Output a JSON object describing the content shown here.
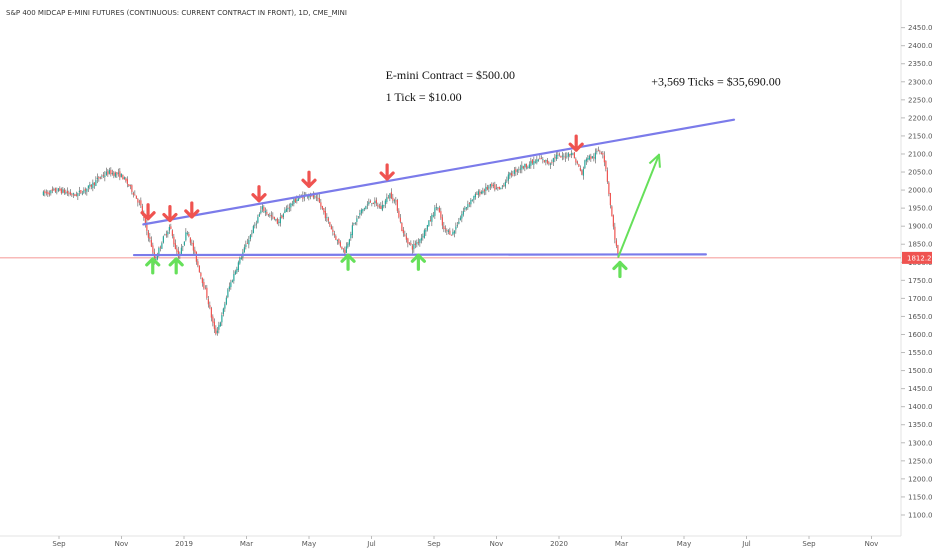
{
  "chart_data": {
    "type": "candlestick",
    "title": "S&P 400 MIDCAP E-MINI FUTURES (CONTINUOUS: CURRENT CONTRACT IN FRONT), 1D, CME_MINI",
    "interval": "1D",
    "exchange": "CME_MINI",
    "y_axis": {
      "position": "right",
      "range": [
        1075,
        2485
      ],
      "ticks": [
        1100,
        1150,
        1200,
        1250,
        1300,
        1350,
        1400,
        1450,
        1500,
        1550,
        1600,
        1650,
        1700,
        1750,
        1800,
        1850,
        1900,
        1950,
        2000,
        2050,
        2100,
        2150,
        2200,
        2250,
        2300,
        2350,
        2400,
        2450
      ],
      "tick_labels": [
        "1100.0",
        "1150.0",
        "1200.0",
        "1250.0",
        "1300.0",
        "1350.0",
        "1400.0",
        "1450.0",
        "1500.0",
        "1550.0",
        "1600.0",
        "1650.0",
        "1700.0",
        "1750.0",
        "1800.0",
        "1850.0",
        "1900.0",
        "1950.0",
        "2000.0",
        "2050.0",
        "2100.0",
        "2150.0",
        "2200.0",
        "2250.0",
        "2300.0",
        "2350.0",
        "2400.0",
        "2450.0"
      ]
    },
    "x_axis": {
      "labels": [
        "Sep",
        "Nov",
        "2019",
        "Mar",
        "May",
        "Jul",
        "Sep",
        "Nov",
        "2020",
        "Mar",
        "May",
        "Jul",
        "Sep",
        "Nov"
      ],
      "month_index": [
        0,
        2,
        4,
        6,
        8,
        10,
        12,
        14,
        16,
        18,
        20,
        22,
        24,
        26
      ]
    },
    "last_price": 1812.2,
    "last_price_label": "1812.2",
    "price_path": [
      [
        -0.5,
        1990
      ],
      [
        0,
        2000
      ],
      [
        0.5,
        1985
      ],
      [
        1,
        2010
      ],
      [
        1.3,
        2035
      ],
      [
        1.6,
        2050
      ],
      [
        2,
        2040
      ],
      [
        2.3,
        2005
      ],
      [
        2.6,
        1960
      ],
      [
        2.8,
        1890
      ],
      [
        2.95,
        1850
      ],
      [
        3.05,
        1800
      ],
      [
        3.3,
        1860
      ],
      [
        3.55,
        1900
      ],
      [
        3.7,
        1845
      ],
      [
        3.85,
        1815
      ],
      [
        4.1,
        1890
      ],
      [
        4.35,
        1820
      ],
      [
        4.55,
        1760
      ],
      [
        4.75,
        1700
      ],
      [
        4.9,
        1640
      ],
      [
        5.0,
        1600
      ],
      [
        5.2,
        1645
      ],
      [
        5.4,
        1720
      ],
      [
        5.7,
        1790
      ],
      [
        6.0,
        1850
      ],
      [
        6.3,
        1910
      ],
      [
        6.5,
        1950
      ],
      [
        6.8,
        1925
      ],
      [
        7.0,
        1910
      ],
      [
        7.3,
        1950
      ],
      [
        7.6,
        1975
      ],
      [
        8.0,
        1990
      ],
      [
        8.3,
        1970
      ],
      [
        8.6,
        1915
      ],
      [
        8.9,
        1860
      ],
      [
        9.15,
        1830
      ],
      [
        9.4,
        1900
      ],
      [
        9.7,
        1945
      ],
      [
        10.0,
        1970
      ],
      [
        10.3,
        1950
      ],
      [
        10.6,
        1990
      ],
      [
        10.8,
        1960
      ],
      [
        11.0,
        1880
      ],
      [
        11.3,
        1840
      ],
      [
        11.6,
        1870
      ],
      [
        11.9,
        1920
      ],
      [
        12.1,
        1960
      ],
      [
        12.3,
        1890
      ],
      [
        12.6,
        1880
      ],
      [
        12.9,
        1935
      ],
      [
        13.1,
        1965
      ],
      [
        13.4,
        1990
      ],
      [
        13.8,
        2010
      ],
      [
        14.1,
        2000
      ],
      [
        14.4,
        2040
      ],
      [
        14.7,
        2060
      ],
      [
        15.0,
        2070
      ],
      [
        15.4,
        2085
      ],
      [
        15.7,
        2075
      ],
      [
        15.9,
        2095
      ],
      [
        16.1,
        2090
      ],
      [
        16.4,
        2105
      ],
      [
        16.6,
        2070
      ],
      [
        16.75,
        2040
      ],
      [
        16.85,
        2090
      ],
      [
        17.1,
        2090
      ],
      [
        17.25,
        2110
      ],
      [
        17.4,
        2105
      ],
      [
        17.5,
        2060
      ],
      [
        17.6,
        1990
      ],
      [
        17.7,
        1920
      ],
      [
        17.8,
        1860
      ],
      [
        17.9,
        1812
      ]
    ],
    "lines": {
      "resistance": {
        "from": [
          2.7,
          1905
        ],
        "to": [
          21.6,
          2195
        ]
      },
      "support": {
        "from": [
          2.4,
          1820
        ],
        "to": [
          20.7,
          1822
        ]
      },
      "projection": {
        "from": [
          17.9,
          1815
        ],
        "to": [
          19.2,
          2098
        ]
      }
    },
    "sell_arrows": [
      [
        2.85,
        1940
      ],
      [
        3.55,
        1935
      ],
      [
        4.25,
        1945
      ],
      [
        6.4,
        1990
      ],
      [
        8.0,
        2030
      ],
      [
        10.5,
        2050
      ],
      [
        16.55,
        2130
      ]
    ],
    "buy_arrows": [
      [
        3.0,
        1790
      ],
      [
        3.75,
        1790
      ],
      [
        9.25,
        1800
      ],
      [
        11.5,
        1800
      ],
      [
        17.95,
        1780
      ]
    ],
    "annotations": [
      {
        "text": "E-mini Contract = $500.00",
        "at": [
          10.45,
          2308
        ]
      },
      {
        "text": "1 Tick = $10.00",
        "at": [
          10.45,
          2247
        ]
      },
      {
        "text": "+3,569 Ticks = $35,690.00",
        "at": [
          18.95,
          2290
        ]
      }
    ],
    "colors": {
      "up": "#26a69a",
      "down": "#ef5350",
      "trendline": "#7b7bea",
      "projection": "#66e05a",
      "sell_arrow": "#ef5350",
      "buy_arrow": "#66e05a",
      "last_price_line": "#ef5350",
      "axis_text": "#555555"
    }
  }
}
